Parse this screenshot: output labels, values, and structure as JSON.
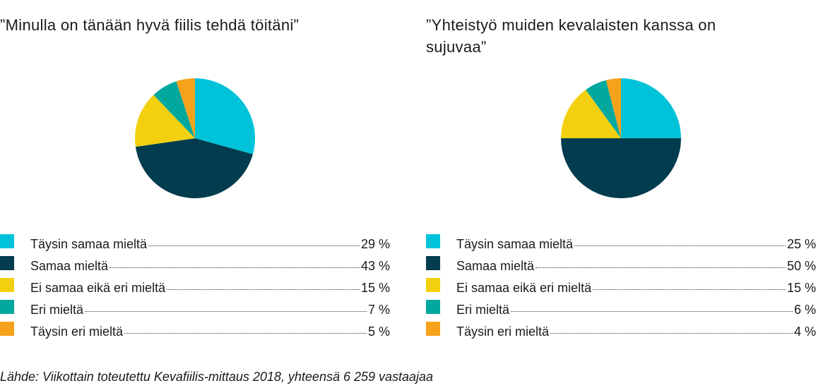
{
  "chart_data": [
    {
      "type": "pie",
      "title": "”Minulla on tänään hyvä fiilis tehdä töitäni”",
      "categories": [
        "Täysin samaa mieltä",
        "Samaa mieltä",
        "Ei samaa eikä eri mieltä",
        "Eri mieltä",
        "Täysin eri mieltä"
      ],
      "values": [
        29,
        43,
        15,
        7,
        5
      ],
      "value_labels": [
        "29 %",
        "43 %",
        "15 %",
        "7 %",
        "5 %"
      ],
      "colors": [
        "#00c3d9",
        "#023c4e",
        "#f2d00f",
        "#00a89e",
        "#f7a21b"
      ]
    },
    {
      "type": "pie",
      "title": "”Yhteistyö muiden kevalaisten kanssa on sujuvaa”",
      "categories": [
        "Täysin samaa mieltä",
        "Samaa mieltä",
        "Ei samaa eikä eri mieltä",
        "Eri mieltä",
        "Täysin eri mieltä"
      ],
      "values": [
        25,
        50,
        15,
        6,
        4
      ],
      "value_labels": [
        "25 %",
        "50 %",
        "15 %",
        "6 %",
        "4 %"
      ],
      "colors": [
        "#00c3d9",
        "#023c4e",
        "#f2d00f",
        "#00a89e",
        "#f7a21b"
      ]
    }
  ],
  "source": "Lähde: Viikottain toteutettu Kevafiilis-mittaus 2018, yhteensä 6 259 vastaajaa"
}
